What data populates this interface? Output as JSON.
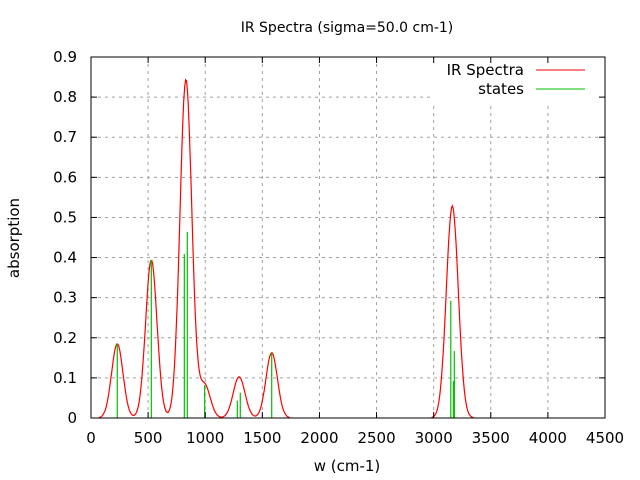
{
  "chart_data": {
    "type": "line",
    "title": "IR Spectra (sigma=50.0 cm-1)",
    "xlabel": "w (cm-1)",
    "ylabel": "absorption",
    "xlim": [
      0,
      4500
    ],
    "ylim": [
      0,
      0.9
    ],
    "xticks": [
      "0",
      "500",
      "1000",
      "1500",
      "2000",
      "2500",
      "3000",
      "3500",
      "4000",
      "4500"
    ],
    "yticks": [
      "0",
      "0.1",
      "0.2",
      "0.3",
      "0.4",
      "0.5",
      "0.6",
      "0.7",
      "0.8",
      "0.9"
    ],
    "grid": true,
    "legend_placement": "top-right",
    "sigma": 50.0,
    "series": [
      {
        "name": "IR Spectra",
        "color": "#ff0000",
        "kind": "gaussian-sum-of-states"
      },
      {
        "name": "states",
        "color": "#00c000",
        "kind": "impulses",
        "x": [
          230,
          528,
          817,
          843,
          995,
          1281,
          1307,
          1582,
          3150,
          3173,
          3181
        ],
        "y": [
          0.185,
          0.394,
          0.409,
          0.464,
          0.082,
          0.043,
          0.063,
          0.163,
          0.292,
          0.092,
          0.167
        ]
      }
    ]
  }
}
